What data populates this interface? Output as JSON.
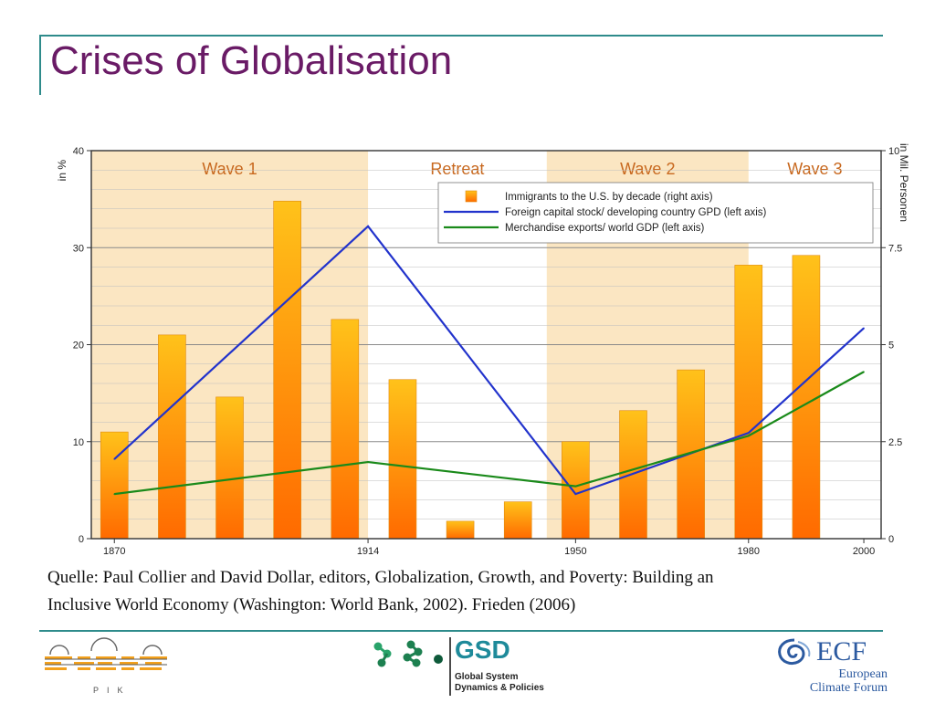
{
  "slide": {
    "title": "Crises of Globalisation",
    "source_line1": "Quelle: Paul Collier and David Dollar, editors, Globalization, Growth, and Poverty: Building an",
    "source_line2": "Inclusive World Economy (Washington: World Bank, 2002). Frieden (2006)",
    "colors": {
      "title": "#6a1b66",
      "rule": "#2e8b8b"
    }
  },
  "chart_data": {
    "type": "bar",
    "ylabel_left": "in %",
    "ylabel_right": "in Mil. Personen",
    "ylim_left": [
      0,
      40
    ],
    "ylim_right": [
      0,
      10
    ],
    "yticks_left": [
      "0",
      "10",
      "20",
      "30",
      "40"
    ],
    "yticks_right": [
      "0",
      "2.5",
      "5",
      "7.5",
      "10"
    ],
    "x_range": [
      1866,
      2003
    ],
    "xticks": [
      "1870",
      "1914",
      "1950",
      "1980",
      "2000"
    ],
    "grid": true,
    "legend_position": "top-right",
    "bands": [
      {
        "label": "Wave 1",
        "from": 1866,
        "to": 1914,
        "shaded": true
      },
      {
        "label": "Retreat",
        "from": 1914,
        "to": 1945,
        "shaded": false
      },
      {
        "label": "Wave 2",
        "from": 1945,
        "to": 1980,
        "shaded": true
      },
      {
        "label": "Wave 3",
        "from": 1980,
        "to": 2003,
        "shaded": false
      }
    ],
    "bars": {
      "name": "Immigrants to the U.S. by decade (right axis)",
      "axis": "right",
      "x": [
        1870,
        1880,
        1890,
        1900,
        1910,
        1920,
        1930,
        1940,
        1950,
        1960,
        1970,
        1980,
        1990
      ],
      "values": [
        2.75,
        5.25,
        3.65,
        8.7,
        5.65,
        4.1,
        0.45,
        0.95,
        2.5,
        3.3,
        4.35,
        7.05,
        7.3
      ],
      "color_top": "#ffc21a",
      "color_bottom": "#ff6a00"
    },
    "series": [
      {
        "name": "Foreign capital stock/ developing country GPD (left axis)",
        "axis": "left",
        "color": "#2233cc",
        "x": [
          1870,
          1914,
          1950,
          1980,
          2000
        ],
        "values": [
          8.2,
          32.2,
          4.6,
          10.9,
          21.7
        ]
      },
      {
        "name": "Merchandise exports/ world GDP (left axis)",
        "axis": "left",
        "color": "#1a8a1a",
        "x": [
          1870,
          1914,
          1950,
          1980,
          2000
        ],
        "values": [
          4.6,
          7.9,
          5.4,
          10.6,
          17.2
        ]
      }
    ]
  },
  "logos": {
    "pik": "PIK",
    "gsd_name": "GSD",
    "gsd_line1": "Global System",
    "gsd_line2": "Dynamics & Policies",
    "ecf_name": "ECF",
    "ecf_line1": "European",
    "ecf_line2": "Climate Forum"
  }
}
